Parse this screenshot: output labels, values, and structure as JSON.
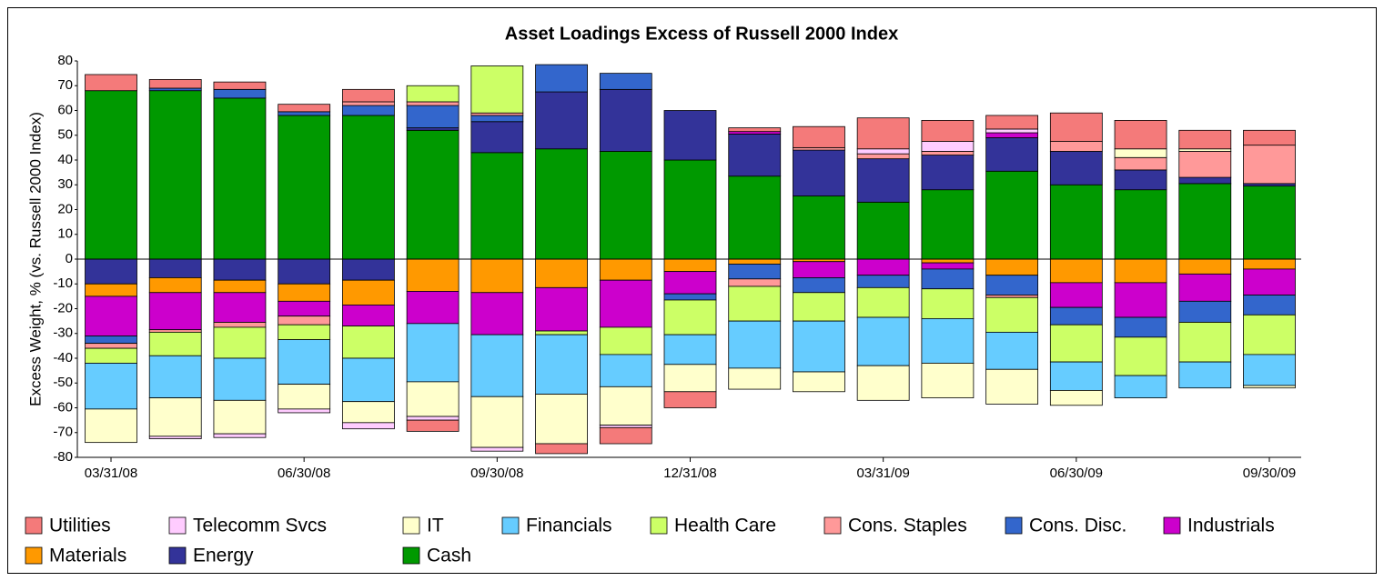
{
  "chart_data": {
    "type": "stacked-bar",
    "title": "Asset Loadings Excess of Russell 2000 Index",
    "y_label": "Excess Weight, % (vs. Russell 2000 Index)",
    "categories": [
      "03/31/08",
      null,
      null,
      "06/30/08",
      null,
      null,
      "09/30/08",
      null,
      null,
      "12/31/08",
      null,
      null,
      "03/31/09",
      null,
      null,
      "06/30/09",
      null,
      null,
      "09/30/09"
    ],
    "ylim": [
      -80,
      80
    ],
    "yticks": [
      -80,
      -70,
      -60,
      -50,
      -40,
      -30,
      -20,
      -10,
      0,
      10,
      20,
      30,
      40,
      50,
      60,
      70,
      80
    ],
    "legend": "bottom",
    "series": [
      {
        "name": "Utilities",
        "color": "#f47a7a",
        "values": [
          6.5,
          3.5,
          3,
          3,
          5,
          -4.5,
          0,
          -4,
          -6.5,
          -6.5,
          1.5,
          8.5,
          12.5,
          8.5,
          5.5,
          11.5,
          11.5,
          7.5,
          6
        ]
      },
      {
        "name": "Telecomm Svcs",
        "color": "#ffccff",
        "values": [
          0,
          -1,
          -1.5,
          -1.5,
          -2.5,
          -1.5,
          -1.5,
          0,
          -1,
          0,
          0,
          0,
          2,
          4,
          1.5,
          0,
          0,
          0,
          0
        ]
      },
      {
        "name": "IT",
        "color": "#ffffcc",
        "values": [
          -13.5,
          -15.5,
          -13.5,
          -10,
          -8.5,
          -14,
          -20.5,
          -20,
          -15.5,
          -11,
          -8.5,
          -8,
          -14,
          -14,
          -14,
          -6,
          3.5,
          1,
          -1
        ]
      },
      {
        "name": "Financials",
        "color": "#66ccff",
        "values": [
          -18.5,
          -17,
          -17,
          -18,
          -17.5,
          -23.5,
          -25,
          -24,
          -13,
          -12,
          -19,
          -20.5,
          -19.5,
          -18,
          -15,
          -11.5,
          -9,
          -10.5,
          -12.5
        ]
      },
      {
        "name": "Health Care",
        "color": "#ccff66",
        "values": [
          -6,
          -9.5,
          -12.5,
          -6,
          -13,
          6.5,
          19,
          -1.5,
          -11,
          -14,
          -14,
          -11.5,
          -12,
          -12,
          -14,
          -15,
          -15.5,
          -16,
          -16
        ]
      },
      {
        "name": "Cons. Staples",
        "color": "#ff9999",
        "values": [
          -2,
          -1,
          -2,
          -3.5,
          1.5,
          1.5,
          1,
          0,
          0,
          0,
          -3,
          1,
          2,
          1.5,
          -1,
          4,
          5,
          10.5,
          15.5
        ]
      },
      {
        "name": "Cons. Disc.",
        "color": "#3366cc",
        "values": [
          -3,
          1,
          3.5,
          1.5,
          4,
          9,
          2.5,
          11,
          6.5,
          -2.5,
          -6,
          -6,
          -5,
          -8,
          -8,
          -7,
          -8,
          -8.5,
          -8
        ]
      },
      {
        "name": "Industrials",
        "color": "#cc00cc",
        "values": [
          -16,
          -15,
          -12,
          -6,
          -8.5,
          -13,
          -17,
          -17.5,
          -19,
          -9,
          1,
          -6.5,
          -6.5,
          -2.5,
          2,
          -10,
          -14,
          -11,
          -10.5
        ]
      },
      {
        "name": "Materials",
        "color": "#ff9900",
        "values": [
          -5,
          -6,
          -5,
          -7,
          -10,
          -13,
          -13.5,
          -11.5,
          -8.5,
          -5,
          -2,
          -1,
          0,
          -1.5,
          -6.5,
          -9.5,
          -9.5,
          -6,
          -4
        ]
      },
      {
        "name": "Energy",
        "color": "#333399",
        "values": [
          -10,
          -7.5,
          -8.5,
          -10,
          -8.5,
          1,
          12.5,
          23,
          25,
          20,
          17,
          18.5,
          17.5,
          14,
          13.5,
          13.5,
          8,
          2.5,
          1
        ]
      },
      {
        "name": "Cash",
        "color": "#009900",
        "values": [
          68,
          68,
          65,
          58,
          58,
          52,
          43,
          44.5,
          43.5,
          40,
          33.5,
          25.5,
          23,
          28,
          35.5,
          30,
          28,
          30.5,
          29.5
        ]
      }
    ]
  }
}
